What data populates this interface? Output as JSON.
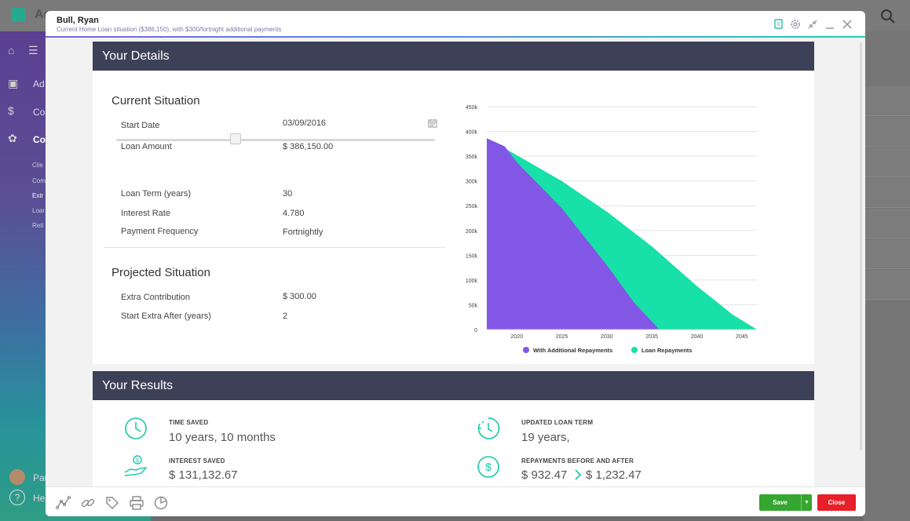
{
  "background": {
    "app_title": "Ac",
    "sidebar_items": [
      "Ad",
      "Co",
      "Co"
    ],
    "sidebar_sub": [
      "Clie",
      "Com",
      "Extr",
      "Loar",
      "Reti"
    ],
    "user": [
      "Pau",
      "Hel"
    ]
  },
  "modal": {
    "title": "Bull, Ryan",
    "subtitle": "Current Home Loan situation ($386,150), with $300/fortnight additional payments"
  },
  "details": {
    "header": "Your Details",
    "current_title": "Current Situation",
    "start_date_label": "Start Date",
    "start_date_value": "03/09/2016",
    "loan_amount_label": "Loan Amount",
    "loan_amount_value": "$ 386,150.00",
    "loan_amount_slider": 0.375,
    "loan_term_label": "Loan Term (years)",
    "loan_term_value": "30",
    "interest_rate_label": "Interest Rate",
    "interest_rate_value": "4.780",
    "payment_freq_label": "Payment Frequency",
    "payment_freq_value": "Fortnightly",
    "projected_title": "Projected Situation",
    "extra_contrib_label": "Extra Contribution",
    "extra_contrib_value": "$ 300.00",
    "start_extra_label": "Start Extra After (years)",
    "start_extra_value": "2"
  },
  "chart_data": {
    "type": "area",
    "title": "",
    "xlabel": "",
    "ylabel": "",
    "xlim": [
      2016.67,
      2046.67
    ],
    "ylim": [
      0,
      450000
    ],
    "x_ticks": [
      2020,
      2025,
      2030,
      2035,
      2040,
      2045
    ],
    "y_ticks": [
      0,
      50000,
      100000,
      150000,
      200000,
      250000,
      300000,
      350000,
      400000,
      450000
    ],
    "y_tick_labels": [
      "0",
      "50k",
      "100k",
      "150k",
      "200k",
      "250k",
      "300k",
      "350k",
      "400k",
      "450k"
    ],
    "grid": true,
    "legend": "bottom",
    "series": [
      {
        "name": "Loan Repayments",
        "color": "#17e0a8",
        "x": [
          2016.67,
          2020,
          2025,
          2030,
          2035,
          2040,
          2044,
          2046.67
        ],
        "values": [
          386150,
          352000,
          300000,
          238000,
          168000,
          88000,
          30000,
          0
        ]
      },
      {
        "name": "With Additional Repayments",
        "color": "#8257e6",
        "x": [
          2016.67,
          2018.67,
          2020,
          2025,
          2030,
          2033,
          2035.83
        ],
        "values": [
          386150,
          370000,
          338000,
          245000,
          130000,
          55000,
          0
        ]
      }
    ]
  },
  "results": {
    "header": "Your Results",
    "time_saved_label": "TIME SAVED",
    "time_saved_value": "10 years, 10 months",
    "updated_term_label": "UPDATED LOAN TERM",
    "updated_term_value": "19 years,",
    "interest_saved_label": "INTEREST SAVED",
    "interest_saved_value": "$ 131,132.67",
    "repayments_label": "REPAYMENTS BEFORE AND AFTER",
    "repayments_before": "$ 932.47",
    "repayments_after": "$ 1,232.47"
  },
  "footer": {
    "save_label": "Save",
    "close_label": "Close"
  },
  "colors": {
    "accent_teal": "#17c9a4",
    "purple": "#8257e6",
    "header_bar": "#3d4157",
    "save": "#35a62f",
    "close": "#e8202a"
  }
}
